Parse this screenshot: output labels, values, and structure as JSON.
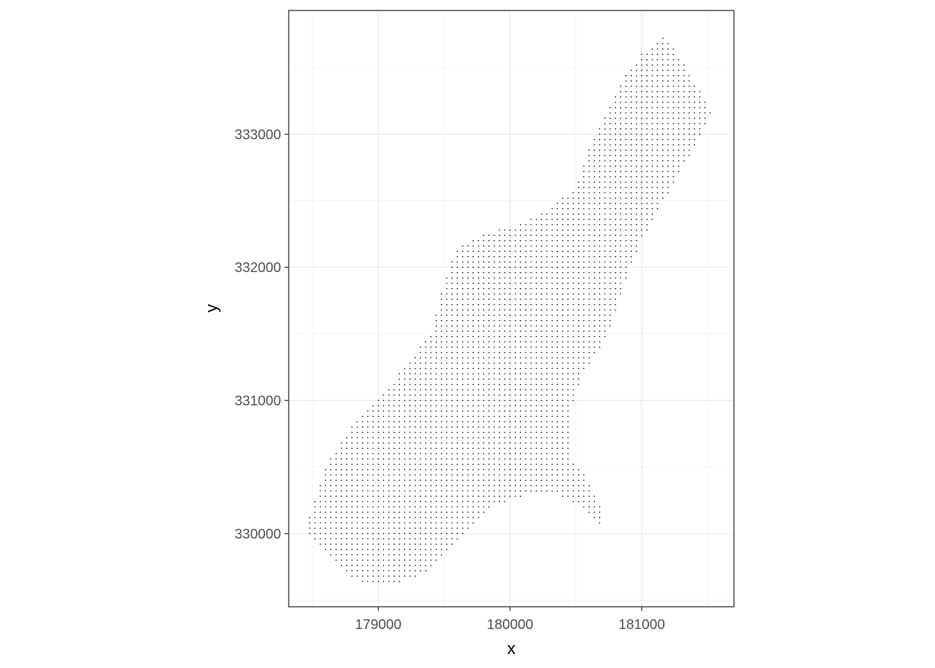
{
  "chart_data": {
    "type": "scatter",
    "title": "",
    "xlabel": "x",
    "ylabel": "y",
    "xlim": [
      178320,
      181700
    ],
    "ylim": [
      329450,
      333930
    ],
    "x_ticks": [
      179000,
      180000,
      181000
    ],
    "y_ticks": [
      330000,
      331000,
      332000,
      333000
    ],
    "x_tick_labels": [
      "179000",
      "180000",
      "181000"
    ],
    "y_tick_labels": [
      "330000",
      "331000",
      "332000",
      "333000"
    ],
    "grid": true,
    "legend": "none",
    "point_spacing": 40,
    "point_color": "#000000",
    "region_outline": [
      [
        178480,
        330150
      ],
      [
        178600,
        330500
      ],
      [
        178800,
        330800
      ],
      [
        179000,
        331000
      ],
      [
        179200,
        331250
      ],
      [
        179400,
        331500
      ],
      [
        179500,
        331900
      ],
      [
        179600,
        332150
      ],
      [
        179850,
        332270
      ],
      [
        180050,
        332320
      ],
      [
        180300,
        332450
      ],
      [
        180500,
        332600
      ],
      [
        180600,
        332900
      ],
      [
        180750,
        333200
      ],
      [
        180850,
        333400
      ],
      [
        181000,
        333600
      ],
      [
        181180,
        333750
      ],
      [
        181280,
        333600
      ],
      [
        181400,
        333400
      ],
      [
        181530,
        333150
      ],
      [
        181400,
        332900
      ],
      [
        181200,
        332550
      ],
      [
        181000,
        332200
      ],
      [
        180880,
        331900
      ],
      [
        180750,
        331500
      ],
      [
        180550,
        331200
      ],
      [
        180450,
        330900
      ],
      [
        180460,
        330550
      ],
      [
        180600,
        330400
      ],
      [
        180700,
        330200
      ],
      [
        180700,
        330050
      ],
      [
        180600,
        330150
      ],
      [
        180400,
        330280
      ],
      [
        180200,
        330300
      ],
      [
        180000,
        330250
      ],
      [
        179900,
        330220
      ],
      [
        179700,
        330050
      ],
      [
        179500,
        329850
      ],
      [
        179350,
        329700
      ],
      [
        179150,
        329620
      ],
      [
        178900,
        329620
      ],
      [
        178750,
        329700
      ],
      [
        178580,
        329900
      ],
      [
        178480,
        330000
      ]
    ]
  }
}
